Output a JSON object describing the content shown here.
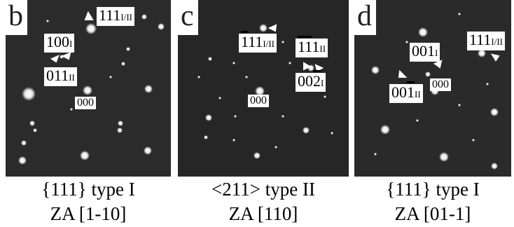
{
  "panels": [
    {
      "letter": "b",
      "caption_line1": "{111} type I",
      "caption_line2": "ZA [1-10]",
      "labels": [
        {
          "main": "111",
          "sub": "I/II"
        },
        {
          "main": "100",
          "sub": "I"
        },
        {
          "main": "011",
          "sub": "II"
        },
        {
          "main": "000",
          "sub": ""
        }
      ]
    },
    {
      "letter": "c",
      "caption_line1": "<211> type II",
      "caption_line2": "ZA [110]",
      "labels": [
        {
          "main": "111",
          "sub": "I/II",
          "overline": "1"
        },
        {
          "main": "111",
          "sub": "II",
          "overline": "11"
        },
        {
          "main": "002",
          "sub": "I",
          "overline": "2"
        },
        {
          "main": "000",
          "sub": ""
        }
      ]
    },
    {
      "letter": "d",
      "caption_line1": "{111} type I",
      "caption_line2": "ZA [01-1]",
      "labels": [
        {
          "main": "111",
          "sub": "I/II"
        },
        {
          "main": "001",
          "sub": "I"
        },
        {
          "main": "001",
          "sub": "II",
          "overline": "1"
        },
        {
          "main": "000",
          "sub": ""
        }
      ]
    }
  ],
  "icons": {
    "arrow": "white-arrow-icon",
    "spot": "diffraction-spot-icon"
  },
  "colors": {
    "pattern_background": "#2a2a2a",
    "spot": "#ffffff",
    "label_background": "#ffffff"
  }
}
